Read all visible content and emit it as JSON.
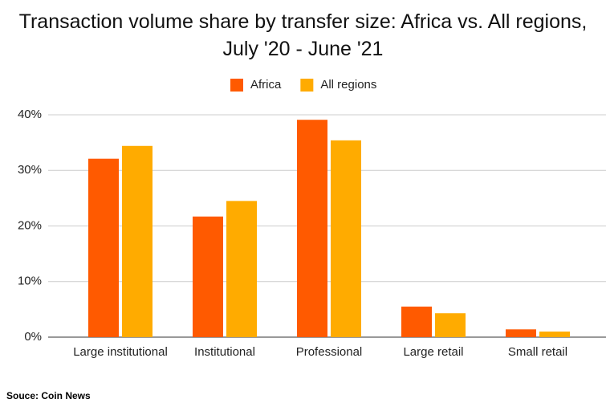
{
  "chart_data": {
    "type": "bar",
    "title": "Transaction volume share by transfer size: Africa vs. All regions, July '20 - June '21",
    "source": "Souce: Coin News",
    "categories": [
      "Large institutional",
      "Institutional",
      "Professional",
      "Large retail",
      "Small retail"
    ],
    "series": [
      {
        "name": "Africa",
        "color": "#ff5a00",
        "values": [
          32.1,
          21.7,
          39.1,
          5.5,
          1.4
        ]
      },
      {
        "name": "All regions",
        "color": "#ffab00",
        "values": [
          34.4,
          24.5,
          35.4,
          4.3,
          1.0
        ]
      }
    ],
    "ylim": [
      0,
      40
    ],
    "yticks": [
      {
        "value": 0,
        "label": "0%"
      },
      {
        "value": 10,
        "label": "10%"
      },
      {
        "value": 20,
        "label": "20%"
      },
      {
        "value": 30,
        "label": "30%"
      },
      {
        "value": 40,
        "label": "40%"
      }
    ],
    "grid": true
  }
}
